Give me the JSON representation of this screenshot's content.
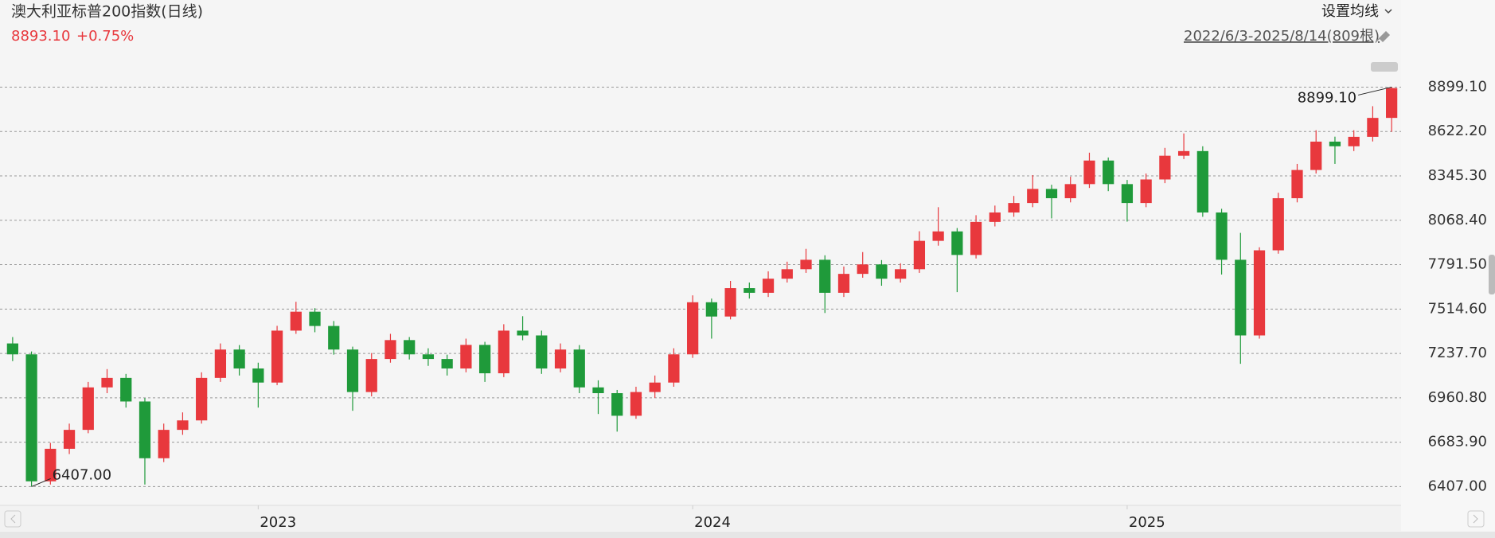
{
  "chart_data": {
    "type": "candlestick",
    "title": "澳大利亚标普200指数(日线)",
    "price": "8893.10",
    "change": "+0.75%",
    "ma_button": "设置均线",
    "range_label": "2022/6/3-2025/8/14(809根)",
    "up_color": "#e8383d",
    "down_color": "#1f9a3a",
    "grid": true,
    "ylim": [
      6290,
      9080
    ],
    "yticks": [
      {
        "value": 6407,
        "label": "6407.00"
      },
      {
        "value": 6683.9,
        "label": "6683.90"
      },
      {
        "value": 6960.8,
        "label": "6960.80"
      },
      {
        "value": 7237.7,
        "label": "7237.70"
      },
      {
        "value": 7514.6,
        "label": "7514.60"
      },
      {
        "value": 7791.5,
        "label": "7791.50"
      },
      {
        "value": 8068.4,
        "label": "8068.40"
      },
      {
        "value": 8345.3,
        "label": "8345.30"
      },
      {
        "value": 8622.2,
        "label": "8622.20"
      },
      {
        "value": 8899.1,
        "label": "8899.10"
      }
    ],
    "annotations": [
      "8899.10",
      "6407.00"
    ],
    "categories": [
      null,
      null,
      null,
      null,
      null,
      null,
      null,
      null,
      null,
      null,
      null,
      null,
      null,
      "2023",
      null,
      null,
      null,
      null,
      null,
      null,
      null,
      null,
      null,
      null,
      null,
      null,
      null,
      null,
      null,
      null,
      null,
      null,
      null,
      null,
      null,
      null,
      "2024",
      null,
      null,
      null,
      null,
      null,
      null,
      null,
      null,
      null,
      null,
      null,
      null,
      null,
      null,
      null,
      null,
      null,
      null,
      null,
      null,
      null,
      null,
      "2025",
      null,
      null,
      null,
      null,
      null,
      null,
      null,
      null,
      null,
      null,
      null,
      null,
      null,
      null
    ],
    "open": [
      7300,
      7232,
      6440,
      6643,
      6761,
      7026,
      7085,
      6938,
      6584,
      6761,
      6820,
      7085,
      7262,
      7144,
      7056,
      7380,
      7498,
      7409,
      7262,
      6997,
      7203,
      7321,
      7232,
      7203,
      7144,
      7291,
      7114,
      7380,
      7350,
      7144,
      7262,
      7026,
      6990,
      6849,
      6997,
      7056,
      7232,
      7557,
      7468,
      7645,
      7616,
      7704,
      7763,
      7822,
      7616,
      7734,
      7793,
      7704,
      7763,
      7940,
      7999,
      7852,
      8058,
      8117,
      8176,
      8264,
      8206,
      8294,
      8441,
      8294,
      8176,
      8323,
      8471,
      8500,
      8117,
      7822,
      7350,
      7881,
      8206,
      8382,
      8559,
      8530,
      8589,
      8707
    ],
    "high": [
      7340,
      7250,
      6680,
      6800,
      7060,
      7140,
      7110,
      6960,
      6800,
      6870,
      7120,
      7300,
      7290,
      7180,
      7410,
      7560,
      7520,
      7440,
      7280,
      7240,
      7360,
      7340,
      7270,
      7230,
      7330,
      7310,
      7420,
      7470,
      7380,
      7300,
      7290,
      7070,
      7010,
      7030,
      7100,
      7270,
      7600,
      7580,
      7690,
      7680,
      7750,
      7810,
      7890,
      7850,
      7780,
      7870,
      7820,
      7800,
      8000,
      8150,
      8020,
      8100,
      8160,
      8220,
      8350,
      8290,
      8340,
      8490,
      8460,
      8320,
      8360,
      8520,
      8610,
      8530,
      8140,
      7990,
      7900,
      8240,
      8420,
      8630,
      8590,
      8630,
      8780,
      8899.1
    ],
    "low": [
      7190,
      6407,
      6420,
      6610,
      6740,
      6990,
      6900,
      6420,
      6560,
      6730,
      6800,
      7060,
      7100,
      6900,
      7040,
      7360,
      7370,
      7230,
      6880,
      6970,
      7180,
      7200,
      7160,
      7100,
      7120,
      7060,
      7090,
      7320,
      7110,
      7120,
      6990,
      6860,
      6750,
      6830,
      6960,
      7030,
      7210,
      7330,
      7450,
      7580,
      7590,
      7680,
      7740,
      7490,
      7590,
      7710,
      7660,
      7680,
      7740,
      7910,
      7620,
      7830,
      8030,
      8090,
      8150,
      8080,
      8180,
      8270,
      8250,
      8060,
      8150,
      8300,
      8450,
      8090,
      7730,
      7173,
      7330,
      7860,
      8180,
      8360,
      8420,
      8500,
      8560,
      8620
    ],
    "close": [
      7232,
      6440,
      6643,
      6761,
      7026,
      7085,
      6938,
      6584,
      6761,
      6820,
      7085,
      7262,
      7144,
      7056,
      7380,
      7498,
      7409,
      7262,
      6997,
      7203,
      7321,
      7232,
      7203,
      7144,
      7291,
      7114,
      7380,
      7350,
      7144,
      7262,
      7026,
      6990,
      6849,
      6997,
      7056,
      7232,
      7557,
      7468,
      7645,
      7616,
      7704,
      7763,
      7822,
      7616,
      7734,
      7793,
      7704,
      7763,
      7940,
      7999,
      7852,
      8058,
      8117,
      8176,
      8264,
      8206,
      8294,
      8441,
      8294,
      8176,
      8323,
      8471,
      8500,
      8117,
      7822,
      7350,
      7881,
      8206,
      8382,
      8559,
      8530,
      8589,
      8707,
      8893.1
    ]
  }
}
